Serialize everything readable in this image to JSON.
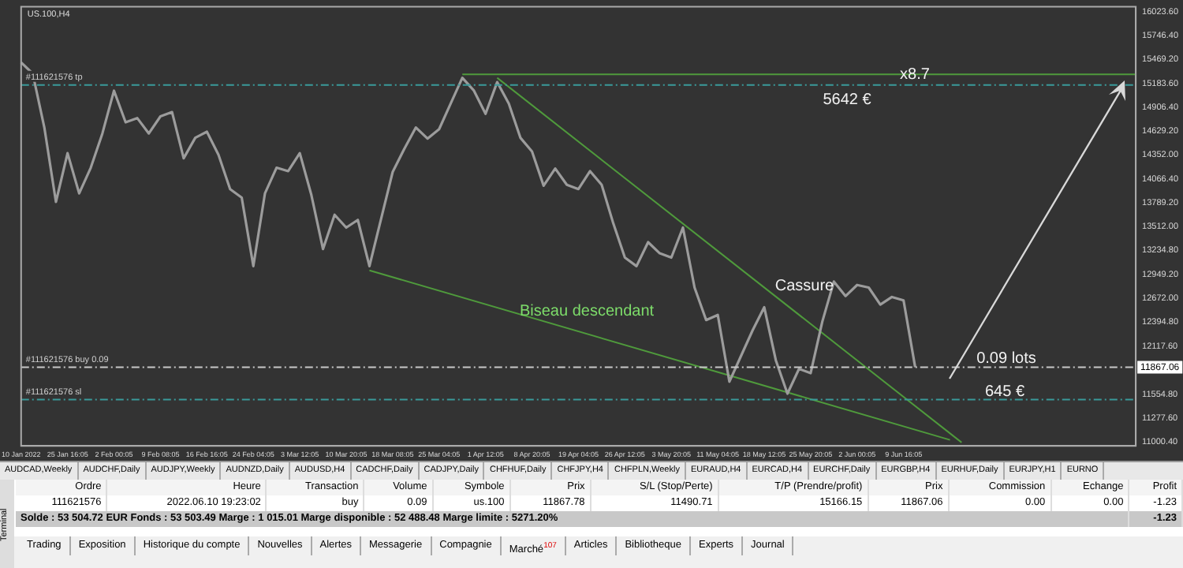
{
  "chart_data": [
    {
      "type": "line",
      "title": "US.100,H4",
      "legend": false,
      "grid": false,
      "marker": "none",
      "categories": [
        "10 Jan 2022",
        null,
        null,
        null,
        "25 Jan 16:05",
        null,
        null,
        null,
        "2 Feb 00:05",
        null,
        null,
        null,
        "9 Feb 08:05",
        null,
        null,
        null,
        "16 Feb 16:05",
        null,
        null,
        null,
        "24 Feb 04:05",
        null,
        null,
        null,
        "3 Mar 12:05",
        null,
        null,
        null,
        "10 Mar 20:05",
        null,
        null,
        null,
        "18 Mar 08:05",
        null,
        null,
        null,
        "25 Mar 04:05",
        null,
        null,
        null,
        "1 Apr 12:05",
        null,
        null,
        null,
        "8 Apr 20:05",
        null,
        null,
        null,
        "19 Apr 04:05",
        null,
        null,
        null,
        "26 Apr 12:05",
        null,
        null,
        null,
        "3 May 20:05",
        null,
        null,
        null,
        "11 May 04:05",
        null,
        null,
        null,
        "18 May 12:05",
        null,
        null,
        null,
        "25 May 20:05",
        null,
        null,
        null,
        "2 Jun 00:05",
        null,
        null,
        null,
        "9 Jun 16:05",
        null,
        null,
        null,
        null,
        null,
        null,
        null,
        null,
        null,
        null,
        null,
        null,
        null,
        null,
        null,
        null,
        null,
        null,
        null,
        null
      ],
      "series": [
        {
          "color": "#9c9c9c",
          "values": [
            15430,
            15300,
            14670,
            13800,
            14370,
            13900,
            14200,
            14600,
            15100,
            14730,
            14780,
            14600,
            14800,
            14850,
            14310,
            14550,
            14620,
            14350,
            13950,
            13850,
            13050,
            13900,
            14200,
            14160,
            14370,
            13880,
            13250,
            13650,
            13500,
            13590,
            13050,
            13600,
            14150,
            14420,
            14670,
            14540,
            14650,
            14950,
            15250,
            15100,
            14830,
            15200,
            14950,
            14550,
            14390,
            13990,
            14190,
            14000,
            13950,
            14160,
            14000,
            13550,
            13150,
            13050,
            13330,
            13200,
            13150,
            13500,
            12800,
            12420,
            12480,
            11700,
            12000,
            12300,
            12570,
            11950,
            11560,
            11850,
            11800,
            12400,
            12870,
            12700,
            12830,
            12800,
            12600,
            12690,
            12650,
            11870,
            null,
            null,
            null,
            null,
            null,
            null,
            null,
            null,
            null,
            null,
            null,
            null,
            null,
            null,
            null,
            null,
            null,
            null,
            null
          ]
        },
        {
          "color": "#4f9a3c",
          "values": [
            null,
            null,
            null,
            null,
            null,
            null,
            null,
            null,
            null,
            null,
            null,
            null,
            null,
            null,
            null,
            null,
            null,
            null,
            null,
            null,
            null,
            null,
            null,
            null,
            null,
            null,
            null,
            null,
            null,
            null,
            null,
            null,
            null,
            null,
            null,
            null,
            null,
            null,
            null,
            null,
            null,
            15250,
            null,
            null,
            null,
            null,
            null,
            null,
            null,
            null,
            null,
            null,
            null,
            null,
            null,
            null,
            null,
            null,
            null,
            null,
            null,
            null,
            null,
            null,
            null,
            null,
            null,
            null,
            null,
            null,
            null,
            null,
            null,
            null,
            null,
            null,
            null,
            null,
            null,
            null,
            null,
            10990,
            null,
            null,
            null,
            null,
            null,
            null,
            null,
            null,
            null,
            null,
            null,
            null,
            null,
            null,
            null
          ]
        },
        {
          "color": "#4f9a3c",
          "values": [
            null,
            null,
            null,
            null,
            null,
            null,
            null,
            null,
            null,
            null,
            null,
            null,
            null,
            null,
            null,
            null,
            null,
            null,
            null,
            null,
            null,
            null,
            null,
            null,
            null,
            null,
            null,
            null,
            null,
            null,
            13000,
            null,
            null,
            null,
            null,
            null,
            null,
            null,
            null,
            null,
            null,
            null,
            null,
            null,
            null,
            null,
            null,
            null,
            null,
            null,
            null,
            null,
            null,
            null,
            null,
            null,
            null,
            null,
            null,
            null,
            null,
            null,
            null,
            null,
            null,
            null,
            null,
            null,
            null,
            null,
            null,
            null,
            null,
            null,
            null,
            null,
            null,
            null,
            null,
            null,
            11020,
            null,
            null,
            null,
            null,
            null,
            null,
            null,
            null,
            null,
            null,
            null,
            null,
            null,
            null,
            null,
            null
          ]
        },
        {
          "color": "#4f9a3c",
          "values": [
            null,
            null,
            null,
            null,
            null,
            null,
            null,
            null,
            null,
            null,
            null,
            null,
            null,
            null,
            null,
            null,
            null,
            null,
            null,
            null,
            null,
            null,
            null,
            null,
            null,
            null,
            null,
            null,
            null,
            null,
            null,
            null,
            null,
            null,
            null,
            null,
            null,
            null,
            15290,
            null,
            null,
            null,
            null,
            null,
            null,
            null,
            null,
            null,
            null,
            null,
            null,
            null,
            null,
            null,
            null,
            null,
            null,
            null,
            null,
            null,
            null,
            null,
            null,
            null,
            null,
            null,
            null,
            null,
            null,
            null,
            null,
            null,
            null,
            null,
            null,
            null,
            null,
            null,
            null,
            null,
            null,
            null,
            null,
            null,
            null,
            null,
            null,
            null,
            null,
            null,
            null,
            null,
            null,
            null,
            null,
            null,
            15290
          ]
        }
      ],
      "ylim": [
        10950,
        16080
      ],
      "yticks": [
        {
          "value": 11000.4,
          "label": "11000.40"
        },
        {
          "value": 11277.6,
          "label": "11277.60"
        },
        {
          "value": 11554.8,
          "label": "11554.80"
        },
        {
          "value": 12117.6,
          "label": "12117.60"
        },
        {
          "value": 12394.8,
          "label": "12394.80"
        },
        {
          "value": 12672,
          "label": "12672.00"
        },
        {
          "value": 12949.2,
          "label": "12949.20"
        },
        {
          "value": 13234.8,
          "label": "13234.80"
        },
        {
          "value": 13512,
          "label": "13512.00"
        },
        {
          "value": 13789.2,
          "label": "13789.20"
        },
        {
          "value": 14066.4,
          "label": "14066.40"
        },
        {
          "value": 14352,
          "label": "14352.00"
        },
        {
          "value": 14629.2,
          "label": "14629.20"
        },
        {
          "value": 14906.4,
          "label": "14906.40"
        },
        {
          "value": 15183.6,
          "label": "15183.60"
        },
        {
          "value": 15469.2,
          "label": "15469.20"
        },
        {
          "value": 15746.4,
          "label": "15746.40"
        },
        {
          "value": 16023.6,
          "label": "16023.60"
        }
      ],
      "ref_lines": [
        {
          "axis": "y",
          "value": 15166.15,
          "label": "#111621576 tp",
          "color": "#3a9a9a",
          "line_style": "dashed"
        },
        {
          "axis": "y",
          "value": 11867.78,
          "label": "#111621576 buy 0.09",
          "color": "#c8c8c8",
          "line_style": "dashed"
        },
        {
          "axis": "y",
          "value": 11490.71,
          "label": "#111621576 sl",
          "color": "#3a9a9a",
          "line_style": "dashed"
        }
      ],
      "annotations": [
        "Biseau descendant",
        "Cassure",
        "x8.7",
        "5642 €",
        "0.09 lots",
        "645 €",
        "11867.06"
      ]
    },
    {
      "type": "other",
      "categories": [
        "AUDCAD,Weekly",
        "AUDCHF,Daily",
        "AUDJPY,Weekly",
        "AUDNZD,Daily",
        "AUDUSD,H4",
        "CADCHF,Daily",
        "CADJPY,Daily",
        "CHFHUF,Daily",
        "CHFJPY,H4",
        "CHFPLN,Weekly",
        "EURAUD,H4",
        "EURCAD,H4",
        "EURCHF,Daily",
        "EURGBP,H4",
        "EURHUF,Daily",
        "EURJPY,H1",
        "EURNO"
      ]
    },
    {
      "type": "other",
      "categories": [
        "Ordre",
        "Heure",
        "Transaction",
        "Volume",
        "Symbole",
        "Prix",
        "S/L (Stop/Perte)",
        "T/P (Prendre/profit)",
        "Prix",
        "Commission",
        "Echange",
        "Profit"
      ],
      "cell_labels": [
        [
          "111621576",
          "2022.06.10 19:23:02",
          "buy",
          "0.09",
          "us.100",
          "11867.78",
          "11490.71",
          "15166.15",
          "11867.06",
          "0.00",
          "0.00",
          "-1.23"
        ],
        [
          "Solde : 53 504.72 EUR  Fonds : 53 503.49  Marge : 1 015.01  Marge disponible : 52 488.48  Marge limite : 5271.20%",
          "-1.23"
        ]
      ],
      "annotations": [
        "Terminal"
      ]
    },
    {
      "type": "other",
      "annotations": [
        "Trading",
        "Exposition",
        "Historique du compte",
        "Nouvelles",
        "Alertes",
        "Messagerie",
        "Compagnie",
        "Marché$^{107}$",
        "Articles",
        "Bibliotheque",
        "Experts",
        "Journal"
      ]
    }
  ]
}
